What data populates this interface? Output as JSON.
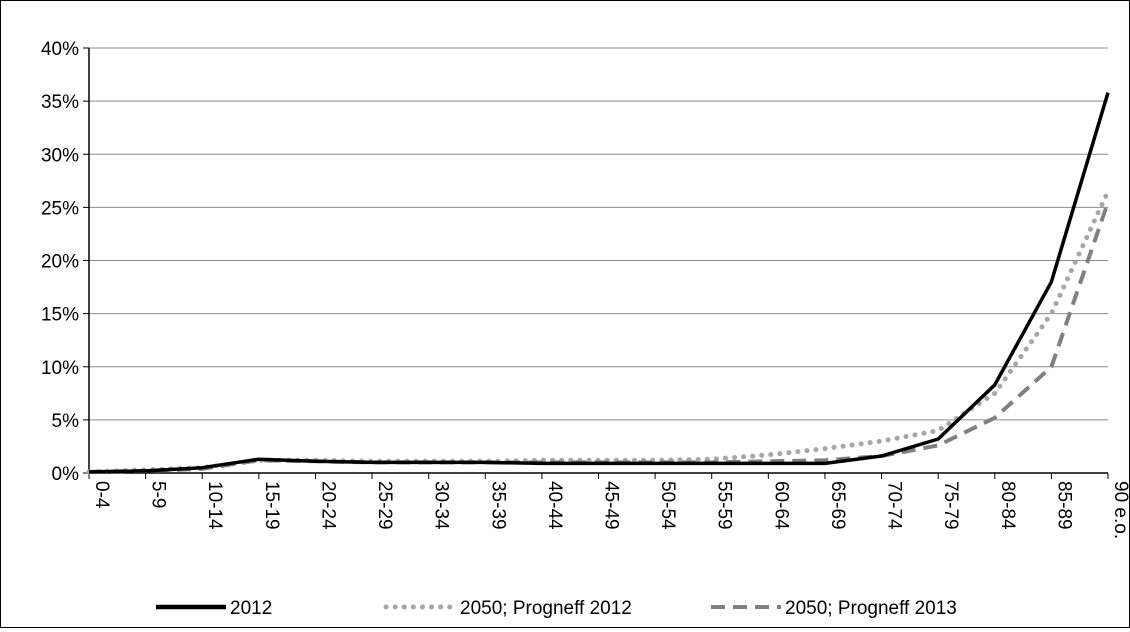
{
  "chart_data": {
    "type": "line",
    "title": "",
    "xlabel": "",
    "ylabel": "",
    "ylim": [
      0,
      0.4
    ],
    "y_tick_step": 0.05,
    "y_tick_format": "percent",
    "grid": "horizontal",
    "legend_position": "bottom",
    "categories": [
      "0-4",
      "5-9",
      "10-14",
      "15-19",
      "20-24",
      "25-29",
      "30-34",
      "35-39",
      "40-44",
      "45-49",
      "50-54",
      "55-59",
      "60-64",
      "65-69",
      "70-74",
      "75-79",
      "80-84",
      "85-89",
      "90 e.o."
    ],
    "series": [
      {
        "name": "2012",
        "color": "#000000",
        "style": "solid",
        "values": [
          0.001,
          0.002,
          0.005,
          0.013,
          0.011,
          0.01,
          0.01,
          0.01,
          0.009,
          0.009,
          0.009,
          0.009,
          0.009,
          0.009,
          0.016,
          0.032,
          0.083,
          0.18,
          0.358
        ]
      },
      {
        "name": "2050; Progneff 2012",
        "color": "#a6a6a6",
        "style": "dotted",
        "values": [
          0.001,
          0.003,
          0.005,
          0.012,
          0.012,
          0.011,
          0.011,
          0.011,
          0.012,
          0.012,
          0.012,
          0.013,
          0.017,
          0.023,
          0.03,
          0.04,
          0.075,
          0.15,
          0.265
        ]
      },
      {
        "name": "2050; Progneff 2013",
        "color": "#808080",
        "style": "dashed",
        "values": [
          0.001,
          0.002,
          0.004,
          0.012,
          0.011,
          0.01,
          0.01,
          0.01,
          0.01,
          0.01,
          0.01,
          0.01,
          0.011,
          0.012,
          0.016,
          0.026,
          0.052,
          0.1,
          0.255
        ]
      }
    ]
  }
}
